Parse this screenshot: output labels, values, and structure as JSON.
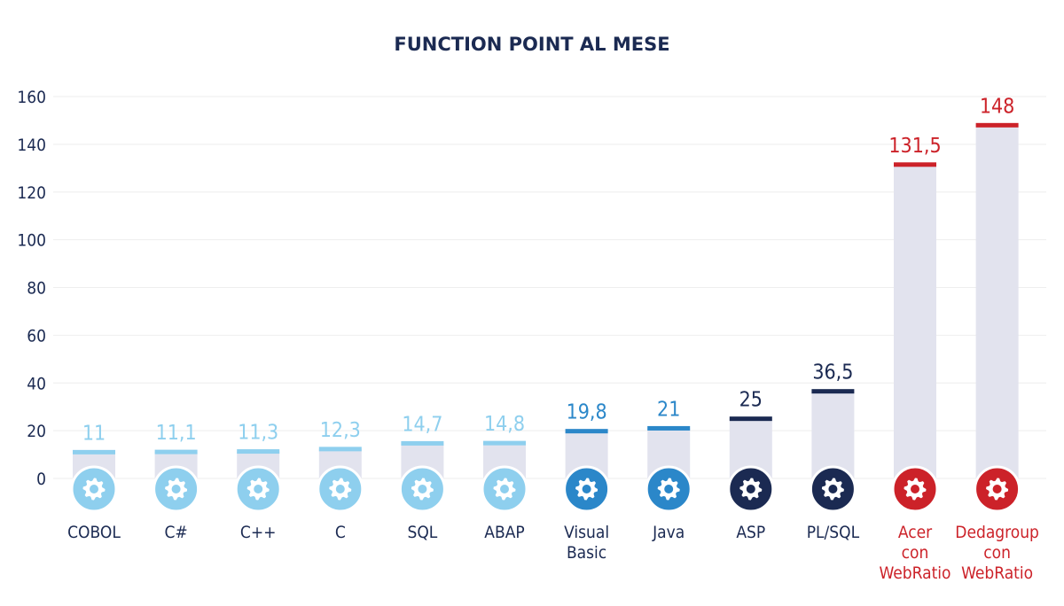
{
  "chart_data": {
    "type": "bar",
    "title": "FUNCTION POINT AL MESE",
    "xlabel": "",
    "ylabel": "",
    "ylim": [
      0,
      160
    ],
    "yticks": [
      0,
      20,
      40,
      60,
      80,
      100,
      120,
      140,
      160
    ],
    "grid": true,
    "legend": "none",
    "categories": [
      [
        "COBOL"
      ],
      [
        "C#"
      ],
      [
        "C++"
      ],
      [
        "C"
      ],
      [
        "SQL"
      ],
      [
        "ABAP"
      ],
      [
        "Visual",
        "Basic"
      ],
      [
        "Java"
      ],
      [
        "ASP"
      ],
      [
        "PL/SQL"
      ],
      [
        "Acer",
        "con",
        "WebRatio"
      ],
      [
        "Dedagroup",
        "con",
        "WebRatio"
      ]
    ],
    "values": [
      11,
      11.1,
      11.3,
      12.3,
      14.7,
      14.8,
      19.8,
      21,
      25,
      36.5,
      131.5,
      148
    ],
    "value_labels": [
      "11",
      "11,1",
      "11,3",
      "12,3",
      "14,7",
      "14,8",
      "19,8",
      "21",
      "25",
      "36,5",
      "131,5",
      "148"
    ],
    "series_groups": [
      "light",
      "light",
      "light",
      "light",
      "light",
      "light",
      "mid",
      "mid",
      "dark",
      "dark",
      "red",
      "red"
    ],
    "icon": "gear-icon",
    "colors": {
      "light": "#8ecfee",
      "mid": "#2b87c9",
      "dark": "#1b2a52",
      "red": "#cc2229",
      "bar_fill": "#e2e3ee",
      "grid": "#eeeeee",
      "axis_text": "#1b2a52"
    }
  }
}
